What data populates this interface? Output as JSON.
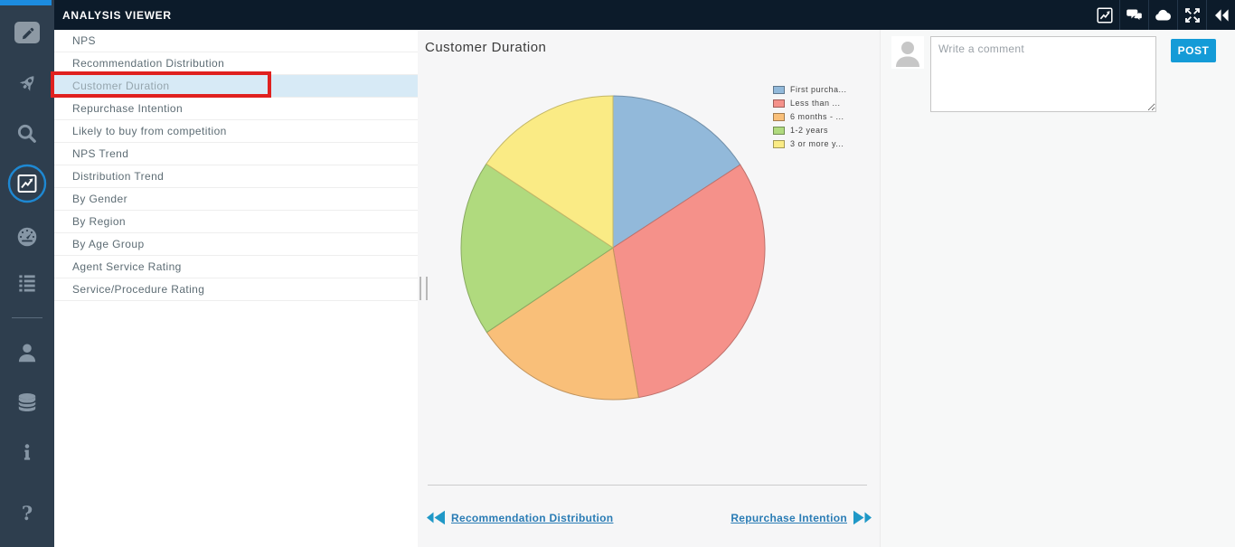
{
  "header": {
    "title": "ANALYSIS VIEWER",
    "icons": [
      "analysis-chart-icon",
      "comments-icon",
      "cloud-icon",
      "expand-icon",
      "rewind-icon"
    ]
  },
  "sidebar": {
    "icons": [
      "pencil-icon",
      "rocket-icon",
      "search-icon",
      "analysis-chart-icon",
      "dashboard-gauge-icon",
      "list-icon",
      "user-icon",
      "database-icon",
      "info-icon",
      "help-icon"
    ],
    "active_icon": "analysis-chart-icon"
  },
  "nav_list": {
    "items": [
      "NPS",
      "Recommendation Distribution",
      "Customer Duration",
      "Repurchase Intention",
      "Likely to buy from competition",
      "NPS Trend",
      "Distribution Trend",
      "By Gender",
      "By Region",
      "By Age Group",
      "Agent Service Rating",
      "Service/Procedure Rating"
    ],
    "selected_index": 2,
    "selected_label": "Customer Duration"
  },
  "main": {
    "title": "Customer Duration",
    "prev_link_label": "Recommendation Distribution",
    "next_link_label": "Repurchase Intention"
  },
  "comments": {
    "placeholder": "Write a comment",
    "post_label": "POST"
  },
  "chart_data": {
    "type": "pie",
    "title": "Customer Duration",
    "labels": [
      "First purcha...",
      "Less than ...",
      "6 months - ...",
      "1-2 years",
      "3 or more y..."
    ],
    "values": [
      15.8,
      31.5,
      18.3,
      18.7,
      15.7
    ],
    "unit": "percent-of-circle (estimated from slice angles)",
    "colors": [
      "#92b9da",
      "#f5918a",
      "#f9bf79",
      "#b0da7e",
      "#faeb85"
    ],
    "start_angle_deg": 0,
    "direction": "clockwise",
    "legend_position": "right",
    "grid": false
  },
  "colors": {
    "header_bg": "#0c1b2a",
    "sidebar_bg": "#2e3e4e",
    "accent_blue_strip": "#1c8ce0",
    "active_icon_ring": "#1e88d2",
    "selected_row_bg": "#d7eaf6",
    "annotation_red": "#e0211f",
    "link_blue": "#2a7cb5",
    "nav_arrow_teal": "#1f98c7",
    "post_button_bg": "#149bd7"
  }
}
